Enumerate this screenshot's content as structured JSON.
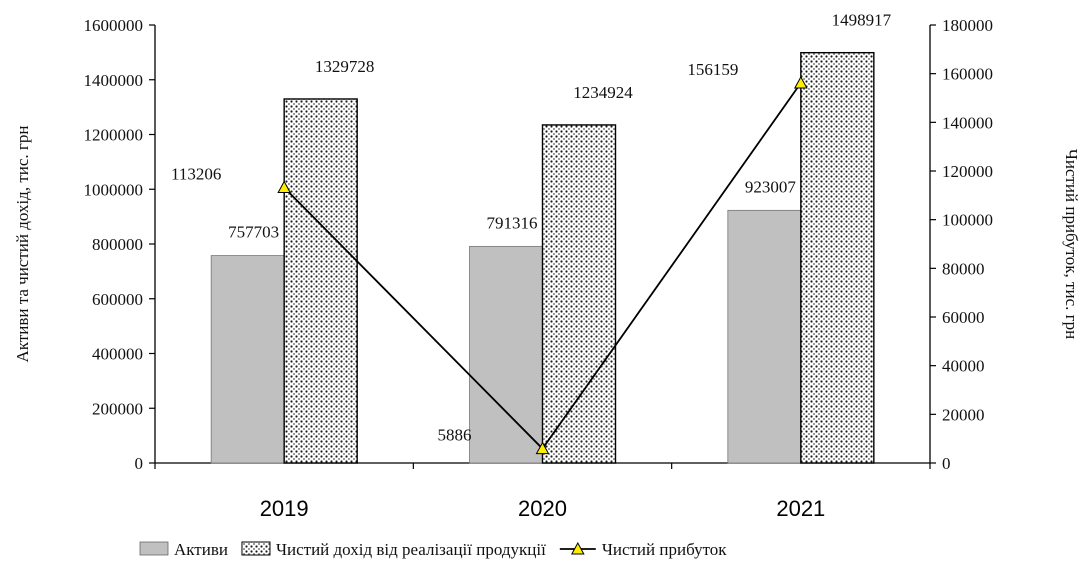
{
  "chart_data": {
    "type": "bar",
    "title": "",
    "categories": [
      "2019",
      "2020",
      "2021"
    ],
    "y_left": {
      "label": "Активи та чистий дохід, тис. грн",
      "range": [
        0,
        1600000
      ],
      "ticks": [
        0,
        200000,
        400000,
        600000,
        800000,
        1000000,
        1200000,
        1400000,
        1600000
      ],
      "tick_labels": [
        "0",
        "200000",
        "400000",
        "600000",
        "800000",
        "1000000",
        "1200000",
        "1400000",
        "1600000"
      ]
    },
    "y_right": {
      "label": "Чистий прибуток, тис. грн",
      "range": [
        0,
        180000
      ],
      "ticks": [
        0,
        20000,
        40000,
        60000,
        80000,
        100000,
        120000,
        140000,
        160000,
        180000
      ],
      "tick_labels": [
        "0",
        "20000",
        "40000",
        "60000",
        "80000",
        "100000",
        "120000",
        "140000",
        "160000",
        "180000"
      ]
    },
    "grid": false,
    "legend_position": "bottom",
    "series": [
      {
        "name": "Активи",
        "type": "bar",
        "axis": "left",
        "values": [
          757703,
          791316,
          923007
        ],
        "value_labels": [
          "757703",
          "791316",
          "923007"
        ],
        "color": "#c0c0c0"
      },
      {
        "name": "Чистий дохід від реалізації продукції",
        "type": "bar",
        "axis": "left",
        "values": [
          1329728,
          1234924,
          1498917
        ],
        "value_labels": [
          "1329728",
          "1234924",
          "1498917"
        ],
        "color": "#ffffff",
        "pattern": "dotted"
      },
      {
        "name": "Чистий прибуток",
        "type": "line",
        "axis": "right",
        "values": [
          113206,
          5886,
          156159
        ],
        "value_labels": [
          "113206",
          "5886",
          "156159"
        ],
        "color": "#000000",
        "marker": "triangle",
        "marker_color": "#ffee00"
      }
    ]
  }
}
